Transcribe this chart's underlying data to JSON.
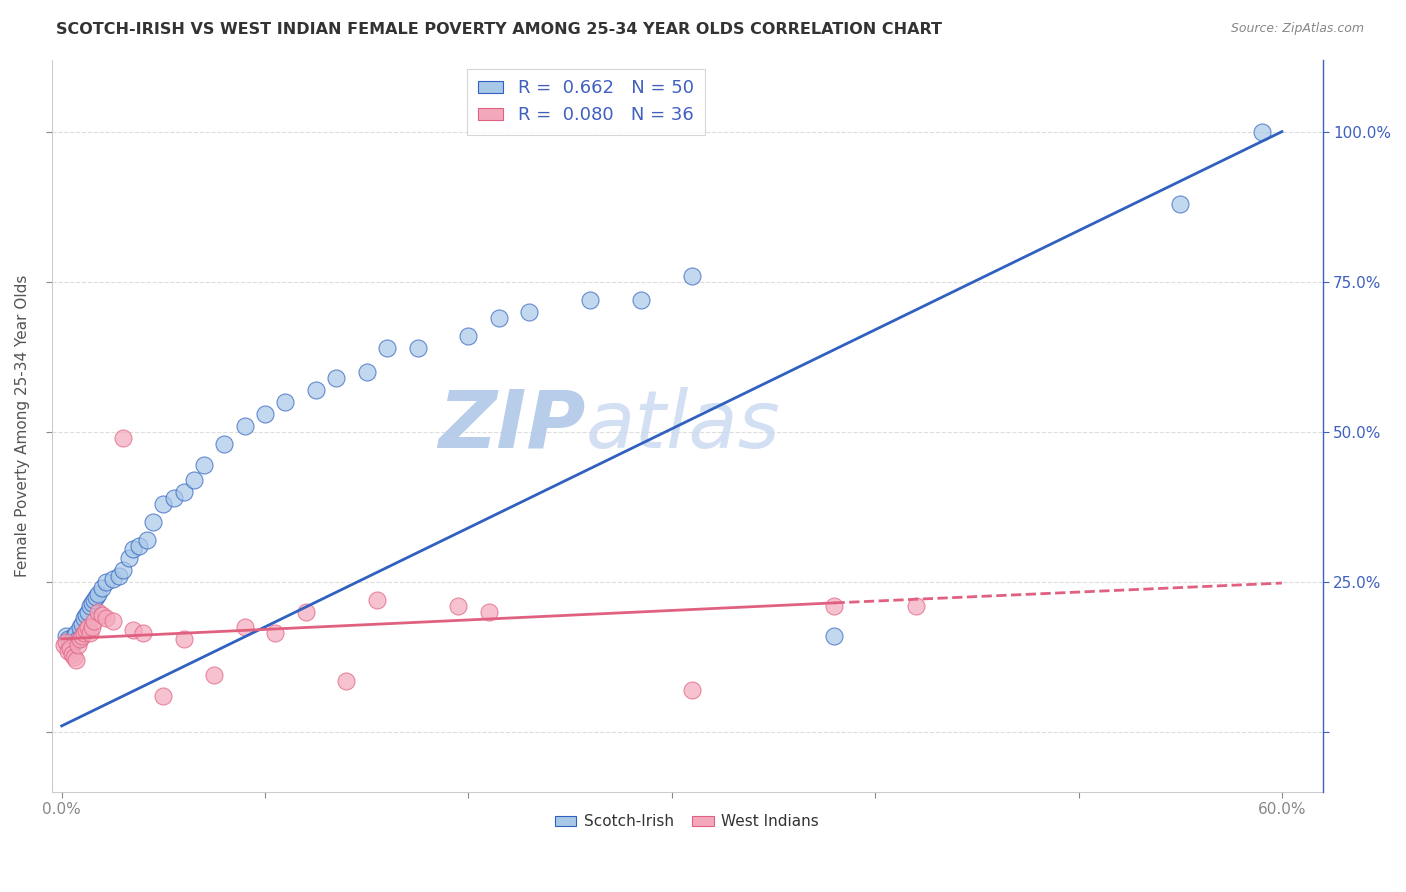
{
  "title": "SCOTCH-IRISH VS WEST INDIAN FEMALE POVERTY AMONG 25-34 YEAR OLDS CORRELATION CHART",
  "source": "Source: ZipAtlas.com",
  "ylabel": "Female Poverty Among 25-34 Year Olds",
  "xlim": [
    -0.005,
    0.62
  ],
  "ylim": [
    -0.1,
    1.12
  ],
  "xticks": [
    0.0,
    0.1,
    0.2,
    0.3,
    0.4,
    0.5,
    0.6
  ],
  "xticklabels": [
    "0.0%",
    "",
    "",
    "",
    "",
    "",
    "60.0%"
  ],
  "yticks_right": [
    0.0,
    0.25,
    0.5,
    0.75,
    1.0
  ],
  "yticklabels_right": [
    "",
    "25.0%",
    "50.0%",
    "75.0%",
    "100.0%"
  ],
  "scotch_irish_R": 0.662,
  "scotch_irish_N": 50,
  "west_indian_R": 0.08,
  "west_indian_N": 36,
  "scotch_irish_color": "#A8C8E8",
  "west_indian_color": "#F4A8BC",
  "trendline_scotch_color": "#3060C0",
  "trendline_west_color": "#E06080",
  "background_color": "#FFFFFF",
  "grid_color": "#DDDDDD",
  "watermark_color": "#C8D8F0",
  "si_trendline_x0": 0.0,
  "si_trendline_y0": 0.01,
  "si_trendline_x1": 0.6,
  "si_trendline_y1": 1.0,
  "wi_trendline_solid_x0": 0.0,
  "wi_trendline_solid_y0": 0.155,
  "wi_trendline_solid_x1": 0.38,
  "wi_trendline_solid_y1": 0.215,
  "wi_trendline_dash_x0": 0.38,
  "wi_trendline_dash_y0": 0.215,
  "wi_trendline_dash_x1": 0.6,
  "wi_trendline_dash_y1": 0.248,
  "si_x": [
    0.002,
    0.003,
    0.004,
    0.005,
    0.006,
    0.007,
    0.008,
    0.009,
    0.01,
    0.011,
    0.012,
    0.013,
    0.014,
    0.015,
    0.016,
    0.017,
    0.018,
    0.02,
    0.022,
    0.025,
    0.028,
    0.03,
    0.033,
    0.035,
    0.038,
    0.042,
    0.045,
    0.05,
    0.055,
    0.06,
    0.065,
    0.07,
    0.08,
    0.09,
    0.1,
    0.11,
    0.125,
    0.135,
    0.15,
    0.16,
    0.175,
    0.2,
    0.215,
    0.23,
    0.26,
    0.285,
    0.31,
    0.38,
    0.55,
    0.59
  ],
  "si_y": [
    0.16,
    0.155,
    0.15,
    0.145,
    0.16,
    0.165,
    0.155,
    0.175,
    0.18,
    0.19,
    0.195,
    0.2,
    0.21,
    0.215,
    0.22,
    0.225,
    0.23,
    0.24,
    0.25,
    0.255,
    0.26,
    0.27,
    0.29,
    0.305,
    0.31,
    0.32,
    0.35,
    0.38,
    0.39,
    0.4,
    0.42,
    0.445,
    0.48,
    0.51,
    0.53,
    0.55,
    0.57,
    0.59,
    0.6,
    0.64,
    0.64,
    0.66,
    0.69,
    0.7,
    0.72,
    0.72,
    0.76,
    0.16,
    0.88,
    1.0
  ],
  "wi_x": [
    0.001,
    0.002,
    0.003,
    0.004,
    0.005,
    0.006,
    0.007,
    0.008,
    0.009,
    0.01,
    0.011,
    0.012,
    0.013,
    0.014,
    0.015,
    0.016,
    0.018,
    0.02,
    0.022,
    0.025,
    0.03,
    0.035,
    0.04,
    0.05,
    0.06,
    0.075,
    0.09,
    0.105,
    0.12,
    0.14,
    0.155,
    0.195,
    0.21,
    0.31,
    0.38,
    0.42
  ],
  "wi_y": [
    0.145,
    0.15,
    0.135,
    0.14,
    0.13,
    0.125,
    0.12,
    0.145,
    0.155,
    0.16,
    0.165,
    0.17,
    0.175,
    0.165,
    0.175,
    0.185,
    0.2,
    0.195,
    0.19,
    0.185,
    0.49,
    0.17,
    0.165,
    0.06,
    0.155,
    0.095,
    0.175,
    0.165,
    0.2,
    0.085,
    0.22,
    0.21,
    0.2,
    0.07,
    0.21,
    0.21
  ]
}
